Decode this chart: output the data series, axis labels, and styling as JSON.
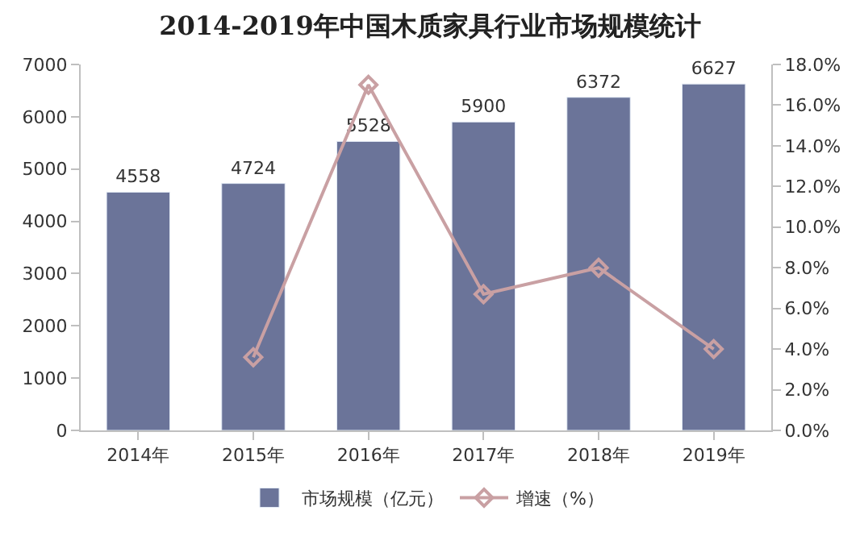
{
  "chart_data": {
    "type": "bar",
    "title": "2014-2019年中国木质家具行业市场规模统计",
    "categories": [
      "2014年",
      "2015年",
      "2016年",
      "2017年",
      "2018年",
      "2019年"
    ],
    "series": [
      {
        "name": "市场规模（亿元）",
        "color": "#6b7499",
        "values": [
          4558,
          4724,
          5528,
          5900,
          6372,
          6627
        ],
        "value_labels": [
          "4558",
          "4724",
          "5528",
          "5900",
          "6372",
          "6627"
        ]
      },
      {
        "name": "增速（%）",
        "type": "line",
        "axis": "y2",
        "color": "#c9a0a3",
        "marker": "diamond",
        "values": [
          null,
          3.6,
          17.0,
          6.7,
          8.0,
          4.0
        ]
      }
    ],
    "ylim": [
      0,
      7000
    ],
    "yticks": [
      0,
      1000,
      2000,
      3000,
      4000,
      5000,
      6000,
      7000
    ],
    "y2lim": [
      0,
      18
    ],
    "y2ticks": [
      {
        "value": 0,
        "label": "0.0%"
      },
      {
        "value": 2,
        "label": "2.0%"
      },
      {
        "value": 4,
        "label": "4.0%"
      },
      {
        "value": 6,
        "label": "6.0%"
      },
      {
        "value": 8,
        "label": "8.0%"
      },
      {
        "value": 10,
        "label": "10.0%"
      },
      {
        "value": 12,
        "label": "12.0%"
      },
      {
        "value": 14,
        "label": "14.0%"
      },
      {
        "value": 16,
        "label": "16.0%"
      },
      {
        "value": 18,
        "label": "18.0%"
      }
    ],
    "legend": "bottom"
  }
}
